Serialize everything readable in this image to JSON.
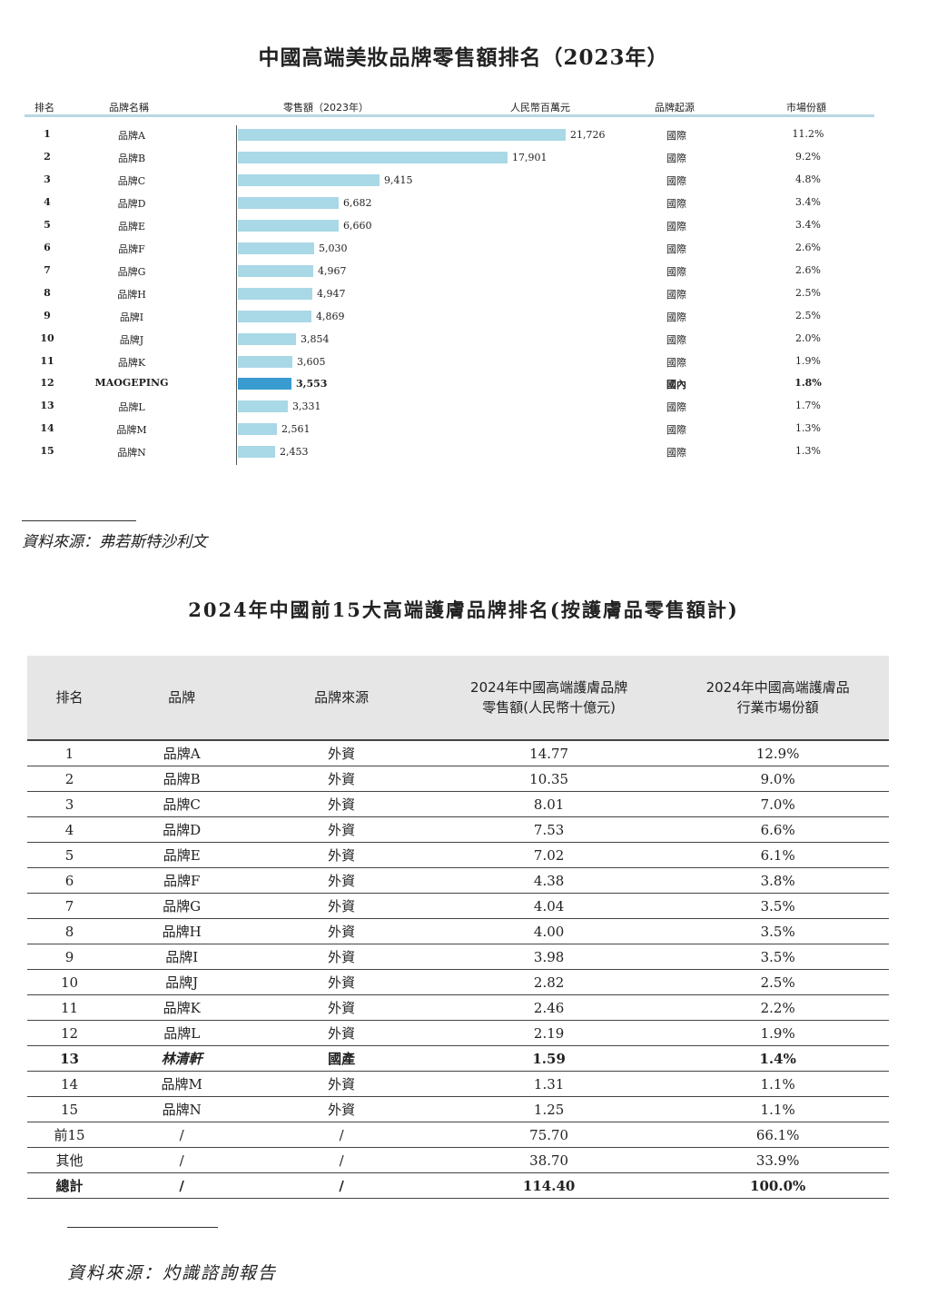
{
  "top_chart": {
    "title": "中國高端美妝品牌零售額排名（2023年）",
    "headers": {
      "rank": "排名",
      "brand": "品牌名稱",
      "sales": "零售額（2023年）",
      "unit": "人民幣百萬元",
      "origin": "品牌起源",
      "share": "市場份額"
    },
    "rows": [
      {
        "rank": "1",
        "brand": "品牌A",
        "value": 21726,
        "value_label": "21,726",
        "origin": "國際",
        "share": "11.2%"
      },
      {
        "rank": "2",
        "brand": "品牌B",
        "value": 17901,
        "value_label": "17,901",
        "origin": "國際",
        "share": "9.2%"
      },
      {
        "rank": "3",
        "brand": "品牌C",
        "value": 9415,
        "value_label": "9,415",
        "origin": "國際",
        "share": "4.8%"
      },
      {
        "rank": "4",
        "brand": "品牌D",
        "value": 6682,
        "value_label": "6,682",
        "origin": "國際",
        "share": "3.4%"
      },
      {
        "rank": "5",
        "brand": "品牌E",
        "value": 6660,
        "value_label": "6,660",
        "origin": "國際",
        "share": "3.4%"
      },
      {
        "rank": "6",
        "brand": "品牌F",
        "value": 5030,
        "value_label": "5,030",
        "origin": "國際",
        "share": "2.6%"
      },
      {
        "rank": "7",
        "brand": "品牌G",
        "value": 4967,
        "value_label": "4,967",
        "origin": "國際",
        "share": "2.6%"
      },
      {
        "rank": "8",
        "brand": "品牌H",
        "value": 4947,
        "value_label": "4,947",
        "origin": "國際",
        "share": "2.5%"
      },
      {
        "rank": "9",
        "brand": "品牌I",
        "value": 4869,
        "value_label": "4,869",
        "origin": "國際",
        "share": "2.5%"
      },
      {
        "rank": "10",
        "brand": "品牌J",
        "value": 3854,
        "value_label": "3,854",
        "origin": "國際",
        "share": "2.0%"
      },
      {
        "rank": "11",
        "brand": "品牌K",
        "value": 3605,
        "value_label": "3,605",
        "origin": "國際",
        "share": "1.9%"
      },
      {
        "rank": "12",
        "brand": "MAOGEPING",
        "value": 3553,
        "value_label": "3,553",
        "origin": "國內",
        "share": "1.8%",
        "highlight": true
      },
      {
        "rank": "13",
        "brand": "品牌L",
        "value": 3331,
        "value_label": "3,331",
        "origin": "國際",
        "share": "1.7%"
      },
      {
        "rank": "14",
        "brand": "品牌M",
        "value": 2561,
        "value_label": "2,561",
        "origin": "國際",
        "share": "1.3%"
      },
      {
        "rank": "15",
        "brand": "品牌N",
        "value": 2453,
        "value_label": "2,453",
        "origin": "國際",
        "share": "1.3%"
      }
    ],
    "colors": {
      "bar": "#a9d8e6",
      "highlight_bar": "#3a9bd0"
    },
    "source": "資料來源：弗若斯特沙利文"
  },
  "bottom_table": {
    "title": "2024年中國前15大高端護膚品牌排名(按護膚品零售額計)",
    "headers": [
      "排名",
      "品牌",
      "品牌來源",
      "2024年中國高端護膚品牌\n零售額(人民幣十億元)",
      "2024年中國高端護膚品\n行業市場份額"
    ],
    "rows": [
      [
        "1",
        "品牌A",
        "外資",
        "14.77",
        "12.9%"
      ],
      [
        "2",
        "品牌B",
        "外資",
        "10.35",
        "9.0%"
      ],
      [
        "3",
        "品牌C",
        "外資",
        "8.01",
        "7.0%"
      ],
      [
        "4",
        "品牌D",
        "外資",
        "7.53",
        "6.6%"
      ],
      [
        "5",
        "品牌E",
        "外資",
        "7.02",
        "6.1%"
      ],
      [
        "6",
        "品牌F",
        "外資",
        "4.38",
        "3.8%"
      ],
      [
        "7",
        "品牌G",
        "外資",
        "4.04",
        "3.5%"
      ],
      [
        "8",
        "品牌H",
        "外資",
        "4.00",
        "3.5%"
      ],
      [
        "9",
        "品牌I",
        "外資",
        "3.98",
        "3.5%"
      ],
      [
        "10",
        "品牌J",
        "外資",
        "2.82",
        "2.5%"
      ],
      [
        "11",
        "品牌K",
        "外資",
        "2.46",
        "2.2%"
      ],
      [
        "12",
        "品牌L",
        "外資",
        "2.19",
        "1.9%"
      ],
      [
        "13",
        "林清軒",
        "國產",
        "1.59",
        "1.4%"
      ],
      [
        "14",
        "品牌M",
        "外資",
        "1.31",
        "1.1%"
      ],
      [
        "15",
        "品牌N",
        "外資",
        "1.25",
        "1.1%"
      ],
      [
        "前15",
        "/",
        "/",
        "75.70",
        "66.1%"
      ],
      [
        "其他",
        "/",
        "/",
        "38.70",
        "33.9%"
      ],
      [
        "總計",
        "/",
        "/",
        "114.40",
        "100.0%"
      ]
    ],
    "bold_rows": [
      12,
      17
    ],
    "source": "資料來源：灼識諮詢報告"
  }
}
